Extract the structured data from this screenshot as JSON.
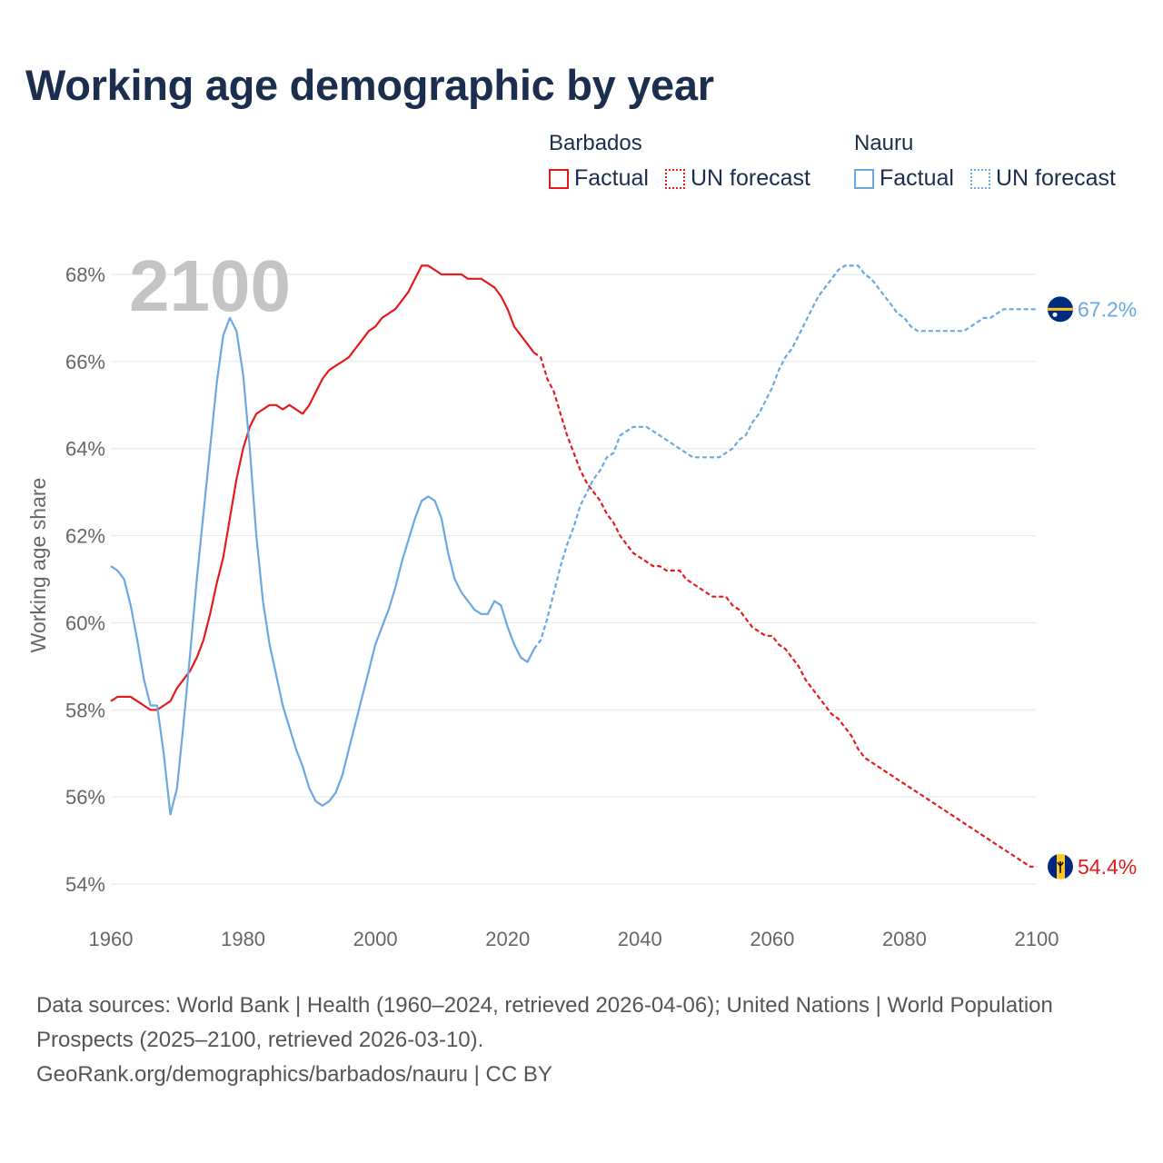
{
  "title": "Working age demographic by year",
  "legend": {
    "groups": [
      {
        "country": "Barbados",
        "factual": "Factual",
        "forecast": "UN forecast"
      },
      {
        "country": "Nauru",
        "factual": "Factual",
        "forecast": "UN forecast"
      }
    ]
  },
  "footer": {
    "sources": "Data sources: World Bank | Health (1960–2024, retrieved 2026-04-06); United Nations | World Population Prospects (2025–2100, retrieved 2026-03-10).",
    "credit": "GeoRank.org/demographics/barbados/nauru | CC BY"
  },
  "colors": {
    "barbados": "#e41a1c",
    "nauru": "#6aa8e2",
    "grid": "#e6e6e6"
  },
  "chart_data": {
    "type": "line",
    "title": "Working age demographic by year",
    "ylabel": "Working age share",
    "xlabel": "",
    "xlim": [
      1960,
      2100
    ],
    "ylim": [
      54,
      68.5
    ],
    "xticks": [
      1960,
      1980,
      2000,
      2020,
      2040,
      2060,
      2080,
      2100
    ],
    "xtick_labels": [
      "1960",
      "1980",
      "2000",
      "2020",
      "2040",
      "2060",
      "2080",
      "2100"
    ],
    "yticks": [
      54,
      56,
      58,
      60,
      62,
      64,
      66,
      68
    ],
    "ytick_labels": [
      "54%",
      "56%",
      "58%",
      "60%",
      "62%",
      "64%",
      "66%",
      "68%"
    ],
    "year_label": "2100",
    "factual_end": 2024,
    "series": [
      {
        "name": "Barbados",
        "end_label": "54.4%",
        "end_icon": "barbados-flag-icon",
        "points": [
          [
            1960,
            58.2
          ],
          [
            1961,
            58.3
          ],
          [
            1962,
            58.3
          ],
          [
            1963,
            58.3
          ],
          [
            1964,
            58.2
          ],
          [
            1965,
            58.1
          ],
          [
            1966,
            58.0
          ],
          [
            1967,
            58.0
          ],
          [
            1968,
            58.1
          ],
          [
            1969,
            58.2
          ],
          [
            1970,
            58.5
          ],
          [
            1971,
            58.7
          ],
          [
            1972,
            58.9
          ],
          [
            1973,
            59.2
          ],
          [
            1974,
            59.6
          ],
          [
            1975,
            60.2
          ],
          [
            1976,
            60.9
          ],
          [
            1977,
            61.5
          ],
          [
            1978,
            62.4
          ],
          [
            1979,
            63.3
          ],
          [
            1980,
            64.0
          ],
          [
            1981,
            64.5
          ],
          [
            1982,
            64.8
          ],
          [
            1983,
            64.9
          ],
          [
            1984,
            65.0
          ],
          [
            1985,
            65.0
          ],
          [
            1986,
            64.9
          ],
          [
            1987,
            65.0
          ],
          [
            1988,
            64.9
          ],
          [
            1989,
            64.8
          ],
          [
            1990,
            65.0
          ],
          [
            1991,
            65.3
          ],
          [
            1992,
            65.6
          ],
          [
            1993,
            65.8
          ],
          [
            1994,
            65.9
          ],
          [
            1995,
            66.0
          ],
          [
            1996,
            66.1
          ],
          [
            1997,
            66.3
          ],
          [
            1998,
            66.5
          ],
          [
            1999,
            66.7
          ],
          [
            2000,
            66.8
          ],
          [
            2001,
            67.0
          ],
          [
            2002,
            67.1
          ],
          [
            2003,
            67.2
          ],
          [
            2004,
            67.4
          ],
          [
            2005,
            67.6
          ],
          [
            2006,
            67.9
          ],
          [
            2007,
            68.2
          ],
          [
            2008,
            68.2
          ],
          [
            2009,
            68.1
          ],
          [
            2010,
            68.0
          ],
          [
            2011,
            68.0
          ],
          [
            2012,
            68.0
          ],
          [
            2013,
            68.0
          ],
          [
            2014,
            67.9
          ],
          [
            2015,
            67.9
          ],
          [
            2016,
            67.9
          ],
          [
            2017,
            67.8
          ],
          [
            2018,
            67.7
          ],
          [
            2019,
            67.5
          ],
          [
            2020,
            67.2
          ],
          [
            2021,
            66.8
          ],
          [
            2022,
            66.6
          ],
          [
            2023,
            66.4
          ],
          [
            2024,
            66.2
          ],
          [
            2025,
            66.1
          ],
          [
            2026,
            65.6
          ],
          [
            2027,
            65.3
          ],
          [
            2028,
            64.8
          ],
          [
            2029,
            64.3
          ],
          [
            2030,
            63.9
          ],
          [
            2031,
            63.5
          ],
          [
            2032,
            63.2
          ],
          [
            2033,
            63.0
          ],
          [
            2034,
            62.8
          ],
          [
            2035,
            62.5
          ],
          [
            2036,
            62.3
          ],
          [
            2037,
            62.0
          ],
          [
            2038,
            61.8
          ],
          [
            2039,
            61.6
          ],
          [
            2040,
            61.5
          ],
          [
            2041,
            61.4
          ],
          [
            2042,
            61.3
          ],
          [
            2043,
            61.3
          ],
          [
            2044,
            61.2
          ],
          [
            2045,
            61.2
          ],
          [
            2046,
            61.2
          ],
          [
            2047,
            61.0
          ],
          [
            2048,
            60.9
          ],
          [
            2049,
            60.8
          ],
          [
            2050,
            60.7
          ],
          [
            2051,
            60.6
          ],
          [
            2052,
            60.6
          ],
          [
            2053,
            60.6
          ],
          [
            2054,
            60.4
          ],
          [
            2055,
            60.3
          ],
          [
            2056,
            60.1
          ],
          [
            2057,
            59.9
          ],
          [
            2058,
            59.8
          ],
          [
            2059,
            59.7
          ],
          [
            2060,
            59.7
          ],
          [
            2061,
            59.5
          ],
          [
            2062,
            59.4
          ],
          [
            2063,
            59.2
          ],
          [
            2064,
            59.0
          ],
          [
            2065,
            58.7
          ],
          [
            2066,
            58.5
          ],
          [
            2067,
            58.3
          ],
          [
            2068,
            58.1
          ],
          [
            2069,
            57.9
          ],
          [
            2070,
            57.8
          ],
          [
            2071,
            57.6
          ],
          [
            2072,
            57.4
          ],
          [
            2073,
            57.1
          ],
          [
            2074,
            56.9
          ],
          [
            2075,
            56.8
          ],
          [
            2076,
            56.7
          ],
          [
            2077,
            56.6
          ],
          [
            2078,
            56.5
          ],
          [
            2079,
            56.4
          ],
          [
            2080,
            56.3
          ],
          [
            2081,
            56.2
          ],
          [
            2082,
            56.1
          ],
          [
            2083,
            56.0
          ],
          [
            2084,
            55.9
          ],
          [
            2085,
            55.8
          ],
          [
            2086,
            55.7
          ],
          [
            2087,
            55.6
          ],
          [
            2088,
            55.5
          ],
          [
            2089,
            55.4
          ],
          [
            2090,
            55.3
          ],
          [
            2091,
            55.2
          ],
          [
            2092,
            55.1
          ],
          [
            2093,
            55.0
          ],
          [
            2094,
            54.9
          ],
          [
            2095,
            54.8
          ],
          [
            2096,
            54.7
          ],
          [
            2097,
            54.6
          ],
          [
            2098,
            54.5
          ],
          [
            2099,
            54.4
          ],
          [
            2100,
            54.4
          ]
        ]
      },
      {
        "name": "Nauru",
        "end_label": "67.2%",
        "end_icon": "nauru-flag-icon",
        "points": [
          [
            1960,
            61.3
          ],
          [
            1961,
            61.2
          ],
          [
            1962,
            61.0
          ],
          [
            1963,
            60.4
          ],
          [
            1964,
            59.6
          ],
          [
            1965,
            58.7
          ],
          [
            1966,
            58.1
          ],
          [
            1967,
            58.1
          ],
          [
            1968,
            57.0
          ],
          [
            1969,
            55.6
          ],
          [
            1970,
            56.2
          ],
          [
            1971,
            57.7
          ],
          [
            1972,
            59.3
          ],
          [
            1973,
            61.0
          ],
          [
            1974,
            62.5
          ],
          [
            1975,
            64.0
          ],
          [
            1976,
            65.5
          ],
          [
            1977,
            66.6
          ],
          [
            1978,
            67.0
          ],
          [
            1979,
            66.7
          ],
          [
            1980,
            65.7
          ],
          [
            1981,
            64.0
          ],
          [
            1982,
            62.0
          ],
          [
            1983,
            60.5
          ],
          [
            1984,
            59.5
          ],
          [
            1985,
            58.8
          ],
          [
            1986,
            58.1
          ],
          [
            1987,
            57.6
          ],
          [
            1988,
            57.1
          ],
          [
            1989,
            56.7
          ],
          [
            1990,
            56.2
          ],
          [
            1991,
            55.9
          ],
          [
            1992,
            55.8
          ],
          [
            1993,
            55.9
          ],
          [
            1994,
            56.1
          ],
          [
            1995,
            56.5
          ],
          [
            1996,
            57.1
          ],
          [
            1997,
            57.7
          ],
          [
            1998,
            58.3
          ],
          [
            1999,
            58.9
          ],
          [
            2000,
            59.5
          ],
          [
            2001,
            59.9
          ],
          [
            2002,
            60.3
          ],
          [
            2003,
            60.8
          ],
          [
            2004,
            61.4
          ],
          [
            2005,
            61.9
          ],
          [
            2006,
            62.4
          ],
          [
            2007,
            62.8
          ],
          [
            2008,
            62.9
          ],
          [
            2009,
            62.8
          ],
          [
            2010,
            62.4
          ],
          [
            2011,
            61.6
          ],
          [
            2012,
            61.0
          ],
          [
            2013,
            60.7
          ],
          [
            2014,
            60.5
          ],
          [
            2015,
            60.3
          ],
          [
            2016,
            60.2
          ],
          [
            2017,
            60.2
          ],
          [
            2018,
            60.5
          ],
          [
            2019,
            60.4
          ],
          [
            2020,
            59.9
          ],
          [
            2021,
            59.5
          ],
          [
            2022,
            59.2
          ],
          [
            2023,
            59.1
          ],
          [
            2024,
            59.4
          ],
          [
            2025,
            59.6
          ],
          [
            2026,
            60.1
          ],
          [
            2027,
            60.7
          ],
          [
            2028,
            61.3
          ],
          [
            2029,
            61.8
          ],
          [
            2030,
            62.2
          ],
          [
            2031,
            62.7
          ],
          [
            2032,
            63.0
          ],
          [
            2033,
            63.3
          ],
          [
            2034,
            63.5
          ],
          [
            2035,
            63.8
          ],
          [
            2036,
            63.9
          ],
          [
            2037,
            64.3
          ],
          [
            2038,
            64.4
          ],
          [
            2039,
            64.5
          ],
          [
            2040,
            64.5
          ],
          [
            2041,
            64.5
          ],
          [
            2042,
            64.4
          ],
          [
            2043,
            64.3
          ],
          [
            2044,
            64.2
          ],
          [
            2045,
            64.1
          ],
          [
            2046,
            64.0
          ],
          [
            2047,
            63.9
          ],
          [
            2048,
            63.8
          ],
          [
            2049,
            63.8
          ],
          [
            2050,
            63.8
          ],
          [
            2051,
            63.8
          ],
          [
            2052,
            63.8
          ],
          [
            2053,
            63.9
          ],
          [
            2054,
            64.0
          ],
          [
            2055,
            64.2
          ],
          [
            2056,
            64.3
          ],
          [
            2057,
            64.6
          ],
          [
            2058,
            64.8
          ],
          [
            2059,
            65.1
          ],
          [
            2060,
            65.4
          ],
          [
            2061,
            65.8
          ],
          [
            2062,
            66.1
          ],
          [
            2063,
            66.3
          ],
          [
            2064,
            66.6
          ],
          [
            2065,
            66.9
          ],
          [
            2066,
            67.2
          ],
          [
            2067,
            67.5
          ],
          [
            2068,
            67.7
          ],
          [
            2069,
            67.9
          ],
          [
            2070,
            68.1
          ],
          [
            2071,
            68.2
          ],
          [
            2072,
            68.2
          ],
          [
            2073,
            68.2
          ],
          [
            2074,
            68.0
          ],
          [
            2075,
            67.9
          ],
          [
            2076,
            67.7
          ],
          [
            2077,
            67.5
          ],
          [
            2078,
            67.3
          ],
          [
            2079,
            67.1
          ],
          [
            2080,
            67.0
          ],
          [
            2081,
            66.8
          ],
          [
            2082,
            66.7
          ],
          [
            2083,
            66.7
          ],
          [
            2084,
            66.7
          ],
          [
            2085,
            66.7
          ],
          [
            2086,
            66.7
          ],
          [
            2087,
            66.7
          ],
          [
            2088,
            66.7
          ],
          [
            2089,
            66.7
          ],
          [
            2090,
            66.8
          ],
          [
            2091,
            66.9
          ],
          [
            2092,
            67.0
          ],
          [
            2093,
            67.0
          ],
          [
            2094,
            67.1
          ],
          [
            2095,
            67.2
          ],
          [
            2096,
            67.2
          ],
          [
            2097,
            67.2
          ],
          [
            2098,
            67.2
          ],
          [
            2099,
            67.2
          ],
          [
            2100,
            67.2
          ]
        ]
      }
    ]
  }
}
